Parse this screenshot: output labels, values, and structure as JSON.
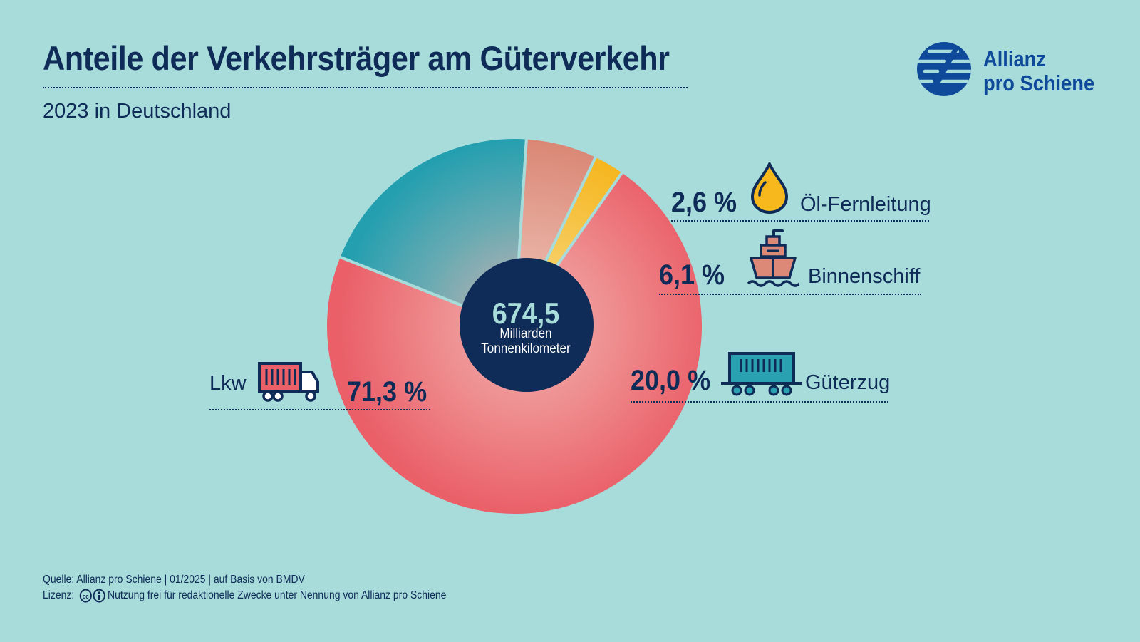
{
  "header": {
    "title": "Anteile der Verkehrsträger am Güterverkehr",
    "subtitle": "2023 in Deutschland"
  },
  "logo": {
    "line1": "Allianz",
    "line2": "pro Schiene",
    "icon": "allianz-logo-icon",
    "color": "#0f4a9a"
  },
  "center": {
    "value": "674,5",
    "unit_line1": "Milliarden",
    "unit_line2": "Tonnenkilometer"
  },
  "chart_data": {
    "type": "pie",
    "start_angle_deg": 55,
    "direction": "counterclockwise",
    "segments": [
      {
        "name": "Lkw",
        "value": 71.3,
        "label": "71,3 %",
        "color": "#ea5f68",
        "icon": "truck-icon"
      },
      {
        "name": "Güterzug",
        "value": 20.0,
        "label": "20,0 %",
        "color": "#2aa1b0",
        "icon": "freight-wagon-icon"
      },
      {
        "name": "Binnenschiff",
        "value": 6.1,
        "label": "6,1 %",
        "color": "#dd8978",
        "icon": "ship-icon"
      },
      {
        "name": "Öl-Fernleitung",
        "value": 2.6,
        "label": "2,6 %",
        "color": "#f6b81c",
        "icon": "oil-drop-icon"
      }
    ]
  },
  "footer": {
    "source": "Quelle: Allianz pro Schiene | 01/2025 | auf Basis von BMDV",
    "license_label": "Lizenz:",
    "license_text": "Nutzung frei für redaktionelle Zwecke unter Nennung von Allianz pro Schiene",
    "license_icons": [
      "cc-icon",
      "by-icon"
    ]
  },
  "colors": {
    "background": "#a7dcdb",
    "text": "#0f2b57",
    "center_circle": "#0f2b57"
  }
}
